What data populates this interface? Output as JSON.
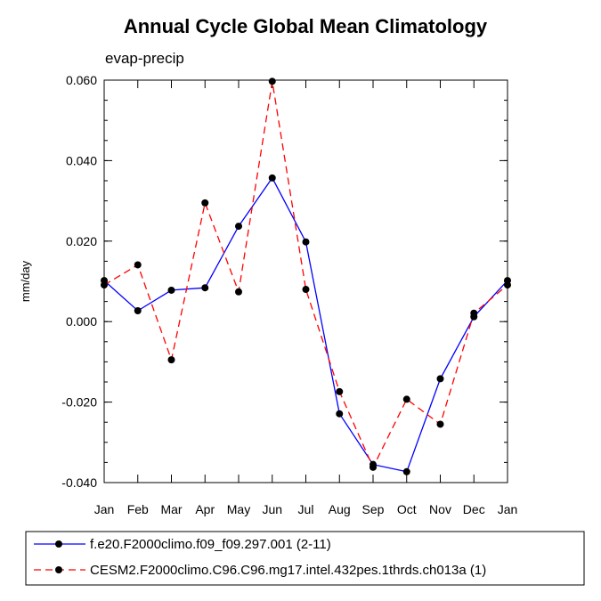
{
  "chart_data": {
    "type": "line",
    "title": "Annual Cycle Global Mean Climatology",
    "subtitle": "evap-precip",
    "xlabel": "",
    "ylabel": "mm/day",
    "categories": [
      "Jan",
      "Feb",
      "Mar",
      "Apr",
      "May",
      "Jun",
      "Jul",
      "Aug",
      "Sep",
      "Oct",
      "Nov",
      "Dec",
      "Jan"
    ],
    "ylim": [
      -0.04,
      0.06
    ],
    "yticks": [
      "0.060",
      "0.040",
      "0.020",
      "0.000",
      "-0.020",
      "-0.040"
    ],
    "ytick_values": [
      0.06,
      0.04,
      0.02,
      0.0,
      -0.02,
      -0.04
    ],
    "series": [
      {
        "name": "f.e20.F2000climo.f09_f09.297.001 (2-11)",
        "color": "#0000ff",
        "dash": "solid",
        "values": [
          0.0102,
          0.0027,
          0.0078,
          0.0084,
          0.0237,
          0.0357,
          0.0198,
          -0.0229,
          -0.0355,
          -0.0373,
          -0.0142,
          0.0012,
          0.0102
        ]
      },
      {
        "name": "CESM2.F2000climo.C96.C96.mg17.intel.432pes.1thrds.ch013a (1)",
        "color": "#ff0000",
        "dash": "dashed",
        "values": [
          0.0091,
          0.0141,
          -0.0095,
          0.0295,
          0.0074,
          0.0597,
          0.008,
          -0.0174,
          -0.0362,
          -0.0193,
          -0.0255,
          0.0021,
          0.0091
        ]
      }
    ]
  }
}
